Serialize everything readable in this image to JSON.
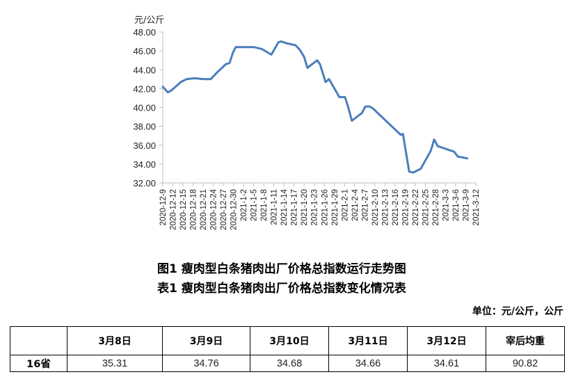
{
  "chart_data": {
    "type": "line",
    "title": "图1 瘦肉型白条猪肉出厂价格总指数运行走势图",
    "xlabel": "",
    "ylabel": "元/公斤",
    "ylim": [
      32,
      48
    ],
    "yticks": [
      "48.00",
      "46.00",
      "44.00",
      "42.00",
      "40.00",
      "38.00",
      "36.00",
      "34.00",
      "32.00"
    ],
    "grid": false,
    "legend": null,
    "line_color": "#4a7ebb",
    "x_tick_labels": [
      "2020-12-9",
      "2020-12-12",
      "2020-12-15",
      "2020-12-18",
      "2020-12-21",
      "2020-12-24",
      "2020-12-27",
      "2020-12-30",
      "2021-1-2",
      "2021-1-5",
      "2021-1-8",
      "2021-1-11",
      "2021-1-14",
      "2021-1-17",
      "2021-1-20",
      "2021-1-23",
      "2021-1-26",
      "2021-1-29",
      "2021-2-1",
      "2021-2-4",
      "2021-2-7",
      "2021-2-10",
      "2021-2-13",
      "2021-2-16",
      "2021-2-19",
      "2021-2-22",
      "2021-2-25",
      "2021-2-28",
      "2021-3-3",
      "2021-3-6",
      "2021-3-9",
      "2021-3-12"
    ],
    "series": [
      {
        "name": "瘦肉型白条猪肉出厂价格总指数",
        "x_frac": [
          0.0,
          0.016,
          0.027,
          0.058,
          0.076,
          0.102,
          0.129,
          0.153,
          0.173,
          0.202,
          0.213,
          0.224,
          0.233,
          0.269,
          0.291,
          0.316,
          0.347,
          0.369,
          0.378,
          0.396,
          0.424,
          0.438,
          0.451,
          0.462,
          0.493,
          0.502,
          0.52,
          0.531,
          0.564,
          0.582,
          0.591,
          0.604,
          0.636,
          0.647,
          0.66,
          0.671,
          0.76,
          0.767,
          0.787,
          0.8,
          0.824,
          0.856,
          0.867,
          0.878,
          0.931,
          0.942,
          0.973
        ],
        "values": [
          42.2,
          41.6,
          41.8,
          42.7,
          43.0,
          43.1,
          43.0,
          43.0,
          43.7,
          44.6,
          44.7,
          45.8,
          46.4,
          46.4,
          46.4,
          46.2,
          45.6,
          46.9,
          47.0,
          46.8,
          46.6,
          46.1,
          45.4,
          44.2,
          45.0,
          44.6,
          42.7,
          43.0,
          41.1,
          41.1,
          40.2,
          38.6,
          39.4,
          40.1,
          40.1,
          39.9,
          37.1,
          37.2,
          33.2,
          33.1,
          33.5,
          35.4,
          36.6,
          35.9,
          35.3,
          34.8,
          34.6
        ]
      }
    ]
  },
  "captions": {
    "figure": "图1 瘦肉型白条猪肉出厂价格总指数运行走势图",
    "table": "表1 瘦肉型白条猪肉出厂价格总指数变化情况表"
  },
  "unit_note": "单位：元/公斤，公斤",
  "table": {
    "headers": [
      "",
      "3月8日",
      "3月9日",
      "3月10日",
      "3月11日",
      "3月12日",
      "宰后均重"
    ],
    "rows": [
      {
        "label": "16省",
        "cells": [
          "35.31",
          "34.76",
          "34.68",
          "34.66",
          "34.61",
          "90.82"
        ]
      }
    ]
  }
}
